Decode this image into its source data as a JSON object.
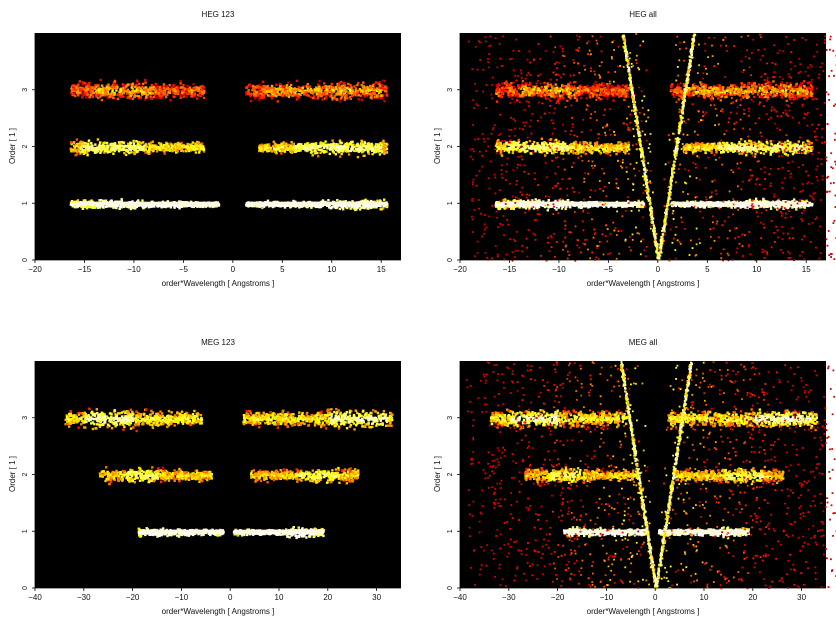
{
  "chart_data": [
    {
      "type": "heatmap",
      "title": "HEG 123",
      "xlabel": "order*Wavelength [ Angstroms ]",
      "ylabel": "Order [ 1 ]",
      "xlim": [
        -20,
        17
      ],
      "ylim": [
        0,
        4
      ],
      "xticks": [
        -20,
        -15,
        -10,
        -5,
        0,
        5,
        10,
        15
      ],
      "yticks": [
        0,
        1,
        2,
        3
      ],
      "background": "#000000",
      "bands": [
        {
          "order": 1,
          "x_min": -16.5,
          "x_max": -1.5,
          "peak": [
            -14,
            -3
          ],
          "brightness": 0.95
        },
        {
          "order": 1,
          "x_min": 1.2,
          "x_max": 15.5,
          "peak": [
            3,
            14
          ],
          "brightness": 0.95
        },
        {
          "order": 2,
          "x_min": -16.5,
          "x_max": -3,
          "peak": [
            -15.5,
            -9
          ],
          "brightness": 0.75
        },
        {
          "order": 2,
          "x_min": 2.5,
          "x_max": 15.5,
          "peak": [
            6,
            15
          ],
          "brightness": 0.75
        },
        {
          "order": 3,
          "x_min": -16.5,
          "x_max": -3,
          "peak": [
            -14,
            -8
          ],
          "brightness": 0.45
        },
        {
          "order": 3,
          "x_min": 1.2,
          "x_max": 15.5,
          "peak": [
            3,
            15
          ],
          "brightness": 0.45
        }
      ],
      "v_wedge": false
    },
    {
      "type": "heatmap",
      "title": "HEG all",
      "xlabel": "order*Wavelength [ Angstroms ]",
      "ylabel": "Order [ 1 ]",
      "xlim": [
        -20,
        17
      ],
      "ylim": [
        0,
        4
      ],
      "xticks": [
        -20,
        -15,
        -10,
        -5,
        0,
        5,
        10,
        15
      ],
      "yticks": [
        0,
        1,
        2,
        3
      ],
      "background": "#000000",
      "bands": [
        {
          "order": 1,
          "x_min": -16.5,
          "x_max": -1.5,
          "peak": [
            -14,
            -3
          ],
          "brightness": 0.95
        },
        {
          "order": 1,
          "x_min": 1.2,
          "x_max": 15.5,
          "peak": [
            3,
            14
          ],
          "brightness": 0.95
        },
        {
          "order": 2,
          "x_min": -16.5,
          "x_max": -3,
          "peak": [
            -15.5,
            -9
          ],
          "brightness": 0.75
        },
        {
          "order": 2,
          "x_min": 2.5,
          "x_max": 15.5,
          "peak": [
            6,
            15
          ],
          "brightness": 0.75
        },
        {
          "order": 3,
          "x_min": -16.5,
          "x_max": -3,
          "peak": [
            -14,
            -8
          ],
          "brightness": 0.45
        },
        {
          "order": 3,
          "x_min": 1.2,
          "x_max": 15.5,
          "peak": [
            3,
            15
          ],
          "brightness": 0.45
        }
      ],
      "v_wedge": true
    },
    {
      "type": "heatmap",
      "title": "MEG 123",
      "xlabel": "order*Wavelength [ Angstroms ]",
      "ylabel": "Order [ 1 ]",
      "xlim": [
        -40,
        35
      ],
      "ylim": [
        0,
        4
      ],
      "xticks": [
        -40,
        -30,
        -20,
        -10,
        0,
        10,
        20,
        30
      ],
      "yticks": [
        0,
        1,
        2,
        3
      ],
      "background": "#000000",
      "bands": [
        {
          "order": 1,
          "x_min": -19,
          "x_max": -1.5,
          "peak": [
            -18,
            -3
          ],
          "brightness": 0.95
        },
        {
          "order": 1,
          "x_min": 0.5,
          "x_max": 19,
          "peak": [
            3,
            17
          ],
          "brightness": 0.95
        },
        {
          "order": 2,
          "x_min": -27,
          "x_max": -4,
          "peak": [
            -22,
            -15
          ],
          "brightness": 0.7
        },
        {
          "order": 2,
          "x_min": 4,
          "x_max": 26,
          "peak": [
            14,
            22
          ],
          "brightness": 0.7
        },
        {
          "order": 3,
          "x_min": -34,
          "x_max": -6,
          "peak": [
            -30,
            -20
          ],
          "brightness": 0.8
        },
        {
          "order": 3,
          "x_min": 2.5,
          "x_max": 33,
          "peak": [
            20,
            32
          ],
          "brightness": 0.8
        }
      ],
      "v_wedge": false
    },
    {
      "type": "heatmap",
      "title": "MEG all",
      "xlabel": "order*Wavelength [ Angstroms ]",
      "ylabel": "Order [ 1 ]",
      "xlim": [
        -40,
        35
      ],
      "ylim": [
        0,
        4
      ],
      "xticks": [
        -40,
        -30,
        -20,
        -10,
        0,
        10,
        20,
        30
      ],
      "yticks": [
        0,
        1,
        2,
        3
      ],
      "background": "#000000",
      "bands": [
        {
          "order": 1,
          "x_min": -19,
          "x_max": -1.5,
          "peak": [
            -18,
            -3
          ],
          "brightness": 0.95
        },
        {
          "order": 1,
          "x_min": 0.5,
          "x_max": 19,
          "peak": [
            3,
            17
          ],
          "brightness": 0.95
        },
        {
          "order": 2,
          "x_min": -27,
          "x_max": -4,
          "peak": [
            -22,
            -15
          ],
          "brightness": 0.7
        },
        {
          "order": 2,
          "x_min": 4,
          "x_max": 26,
          "peak": [
            14,
            22
          ],
          "brightness": 0.7
        },
        {
          "order": 3,
          "x_min": -34,
          "x_max": -6,
          "peak": [
            -30,
            -20
          ],
          "brightness": 0.8
        },
        {
          "order": 3,
          "x_min": 2.5,
          "x_max": 33,
          "peak": [
            20,
            32
          ],
          "brightness": 0.8
        }
      ],
      "v_wedge": true
    }
  ]
}
